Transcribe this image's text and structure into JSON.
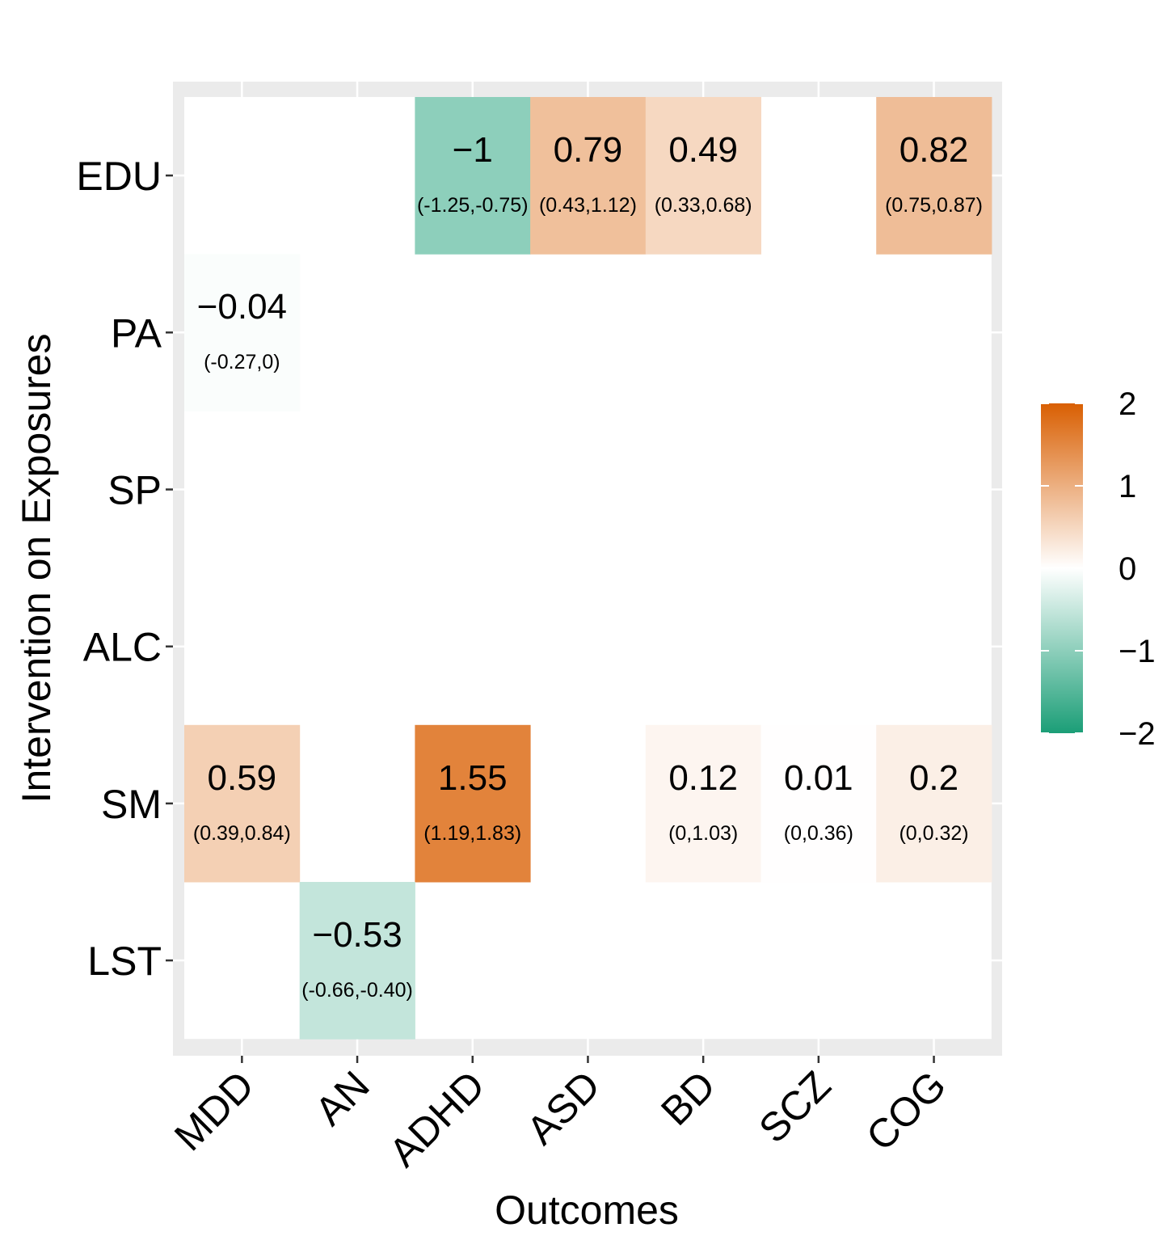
{
  "chart_data": {
    "type": "heatmap",
    "xlabel": "Outcomes",
    "ylabel": "Intervention on Exposures",
    "x_categories": [
      "MDD",
      "AN",
      "ADHD",
      "ASD",
      "BD",
      "SCZ",
      "COG"
    ],
    "y_categories": [
      "EDU",
      "PA",
      "SP",
      "ALC",
      "SM",
      "LST"
    ],
    "cells": [
      {
        "x": "ADHD",
        "y": "EDU",
        "value": -1,
        "label": "−1",
        "ci": "(-1.25,-0.75)"
      },
      {
        "x": "ASD",
        "y": "EDU",
        "value": 0.79,
        "label": "0.79",
        "ci": "(0.43,1.12)"
      },
      {
        "x": "BD",
        "y": "EDU",
        "value": 0.49,
        "label": "0.49",
        "ci": "(0.33,0.68)"
      },
      {
        "x": "COG",
        "y": "EDU",
        "value": 0.82,
        "label": "0.82",
        "ci": "(0.75,0.87)"
      },
      {
        "x": "MDD",
        "y": "PA",
        "value": -0.04,
        "label": "−0.04",
        "ci": "(-0.27,0)"
      },
      {
        "x": "MDD",
        "y": "SM",
        "value": 0.59,
        "label": "0.59",
        "ci": "(0.39,0.84)"
      },
      {
        "x": "ADHD",
        "y": "SM",
        "value": 1.55,
        "label": "1.55",
        "ci": "(1.19,1.83)"
      },
      {
        "x": "BD",
        "y": "SM",
        "value": 0.12,
        "label": "0.12",
        "ci": "(0,1.03)"
      },
      {
        "x": "SCZ",
        "y": "SM",
        "value": 0.01,
        "label": "0.01",
        "ci": "(0,0.36)"
      },
      {
        "x": "COG",
        "y": "SM",
        "value": 0.2,
        "label": "0.2",
        "ci": "(0,0.32)"
      },
      {
        "x": "AN",
        "y": "LST",
        "value": -0.53,
        "label": "−0.53",
        "ci": "(-0.66,-0.40)"
      }
    ],
    "colorbar": {
      "range": [
        -2,
        2
      ],
      "ticks": [
        2,
        1,
        0,
        -1,
        -2
      ],
      "tick_labels": [
        "2",
        "1",
        "0",
        "−1",
        "−2"
      ],
      "colors": {
        "low": "#1b9e77",
        "mid": "#ffffff",
        "high": "#d95f02"
      },
      "placement": "right"
    },
    "panel_background": "#ebebeb",
    "grid": true
  }
}
